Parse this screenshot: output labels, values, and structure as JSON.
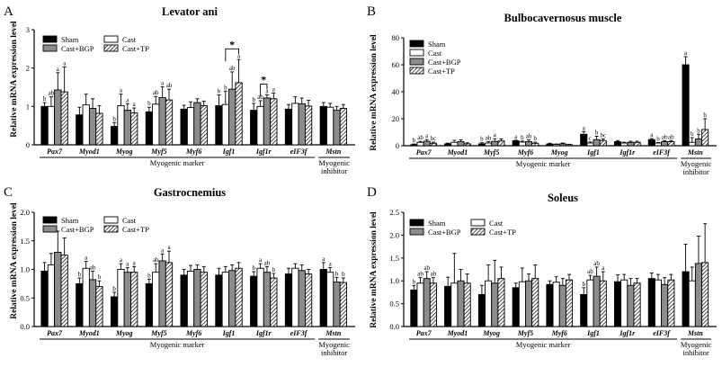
{
  "colors": {
    "sham": "#000000",
    "cast": "#ffffff",
    "cast_bgp": "#8c8c8c",
    "cast_tp_pattern": "diagonal-hatch",
    "axis": "#000000"
  },
  "chart_data": [
    {
      "type": "bar",
      "panel_letter": "A",
      "title": "Levator ani",
      "ylabel": "Relative mRNA expression level",
      "ylim": [
        0,
        3
      ],
      "yticks": [
        "0",
        "1",
        "2",
        "3"
      ],
      "legend": [
        "Sham",
        "Cast",
        "Cast+BGP",
        "Cast+TP"
      ],
      "legend_position": "top-left",
      "series_names": [
        "Sham",
        "Cast",
        "Cast+BGP",
        "Cast+TP"
      ],
      "categories": [
        "Pax7",
        "Myod1",
        "Myog",
        "Myf5",
        "Myf6",
        "Igf1",
        "Igf1r",
        "eIF3f",
        "Mstn"
      ],
      "values": [
        [
          1.0,
          1.0,
          1.43,
          1.38
        ],
        [
          0.78,
          1.04,
          0.95,
          0.82
        ],
        [
          0.48,
          1.02,
          0.9,
          0.83
        ],
        [
          0.86,
          1.06,
          1.23,
          1.17
        ],
        [
          0.93,
          0.97,
          1.1,
          1.02
        ],
        [
          1.02,
          1.05,
          1.45,
          1.62
        ],
        [
          0.9,
          1.0,
          1.22,
          1.2
        ],
        [
          0.93,
          1.08,
          1.07,
          1.01
        ],
        [
          1.0,
          0.98,
          0.9,
          0.95
        ]
      ],
      "errors": [
        [
          0.1,
          0.25,
          0.45,
          0.65
        ],
        [
          0.2,
          0.28,
          0.25,
          0.2
        ],
        [
          0.1,
          0.3,
          0.17,
          0.13
        ],
        [
          0.12,
          0.2,
          0.28,
          0.28
        ],
        [
          0.1,
          0.15,
          0.1,
          0.12
        ],
        [
          0.28,
          0.35,
          0.45,
          0.6
        ],
        [
          0.18,
          0.15,
          0.08,
          0.15
        ],
        [
          0.12,
          0.17,
          0.15,
          0.15
        ],
        [
          0.1,
          0.1,
          0.1,
          0.1
        ]
      ],
      "letters": [
        [
          "b",
          "ab",
          "a",
          "a"
        ],
        [
          "",
          "",
          "",
          ""
        ],
        [
          "b",
          "a",
          "a",
          "a"
        ],
        [
          "b",
          "ab",
          "a",
          "ab"
        ],
        [
          "",
          "",
          "",
          ""
        ],
        [
          "b",
          "b",
          "ab",
          "a"
        ],
        [
          "b",
          "ab",
          "a",
          "a"
        ],
        [
          "",
          "",
          "",
          ""
        ],
        [
          "",
          "",
          "",
          ""
        ]
      ],
      "stars": [
        {
          "category": "Igf1",
          "from": 1,
          "to": 3,
          "label": "*"
        },
        {
          "category": "Igf1r",
          "from": 1,
          "to": 2,
          "label": "*"
        }
      ],
      "groups": [
        {
          "label": "Myogenic marker",
          "from": 0,
          "to": 7
        },
        {
          "label": "Myogenic\ninhibitor",
          "from": 8,
          "to": 8
        }
      ]
    },
    {
      "type": "bar",
      "panel_letter": "B",
      "title": "Bulbocavernosus muscle",
      "ylabel": "Relative mRNA expression level",
      "ylim": [
        0,
        80
      ],
      "yticks": [
        "0",
        "20",
        "40",
        "60",
        "80"
      ],
      "legend": [
        "Sham",
        "Cast",
        "Cast+BGP",
        "Cast+TP"
      ],
      "legend_position": "top-left",
      "series_names": [
        "Sham",
        "Cast",
        "Cast+BGP",
        "Cast+TP"
      ],
      "categories": [
        "Pax7",
        "Myod1",
        "Myf5",
        "Myf6",
        "Myog",
        "Igf1",
        "Igf1r",
        "eIF3f",
        "Mstn"
      ],
      "values": [
        [
          0.8,
          2.5,
          3.3,
          1.8
        ],
        [
          1.4,
          2.5,
          3.0,
          1.4
        ],
        [
          1.4,
          2.0,
          3.2,
          3.5
        ],
        [
          3.6,
          2.7,
          3.0,
          1.8
        ],
        [
          1.3,
          0.9,
          1.4,
          0.8
        ],
        [
          8.5,
          2.0,
          4.5,
          3.8
        ],
        [
          3.0,
          2.0,
          2.5,
          2.5
        ],
        [
          4.5,
          2.0,
          3.0,
          3.0
        ],
        [
          60.0,
          2.5,
          5.0,
          12.0
        ]
      ],
      "errors": [
        [
          0.5,
          0.7,
          1.3,
          0.8
        ],
        [
          0.5,
          1.5,
          1.3,
          0.8
        ],
        [
          0.8,
          1.0,
          2.0,
          1.5
        ],
        [
          0.5,
          0.7,
          1.3,
          0.8
        ],
        [
          0.5,
          0.4,
          0.6,
          0.3
        ],
        [
          2.0,
          0.8,
          2.5,
          1.2
        ],
        [
          0.8,
          0.6,
          0.8,
          0.8
        ],
        [
          0.8,
          0.4,
          0.7,
          0.8
        ],
        [
          6.0,
          3.5,
          3.5,
          8.0
        ]
      ],
      "letters": [
        [
          "b",
          "ab",
          "a",
          "bc"
        ],
        [
          "",
          "",
          "",
          ""
        ],
        [
          "b",
          "ab",
          "a",
          ""
        ],
        [
          "a",
          "b",
          "ab",
          "b"
        ],
        [
          "",
          "",
          "",
          ""
        ],
        [
          "a",
          "c",
          "b",
          "bc"
        ],
        [
          "",
          "",
          "",
          ""
        ],
        [
          "a",
          "b",
          "ab",
          "ab"
        ],
        [
          "a",
          "b",
          "b",
          "b"
        ]
      ],
      "stars": [],
      "groups": [
        {
          "label": "Myogenic marker",
          "from": 0,
          "to": 7
        },
        {
          "label": "Myogenic\ninhibitor",
          "from": 8,
          "to": 8
        }
      ]
    },
    {
      "type": "bar",
      "panel_letter": "C",
      "title": "Gastrocnemius",
      "ylabel": "Relative mRNA expression level",
      "ylim": [
        0,
        2
      ],
      "yticks": [
        "0.0",
        "0.5",
        "1.0",
        "1.5",
        "2.0"
      ],
      "legend": [
        "Sham",
        "Cast",
        "Cast+BGP",
        "Cast+TP"
      ],
      "legend_position": "top-left",
      "series_names": [
        "Sham",
        "Cast",
        "Cast+BGP",
        "Cast+TP"
      ],
      "categories": [
        "Pax7",
        "Myod1",
        "Myog",
        "Myf5",
        "Myf6",
        "Igf1",
        "Igf1r",
        "eIF3f",
        "Mstn"
      ],
      "values": [
        [
          0.97,
          1.08,
          1.3,
          1.25
        ],
        [
          0.75,
          1.02,
          0.82,
          0.7
        ],
        [
          0.52,
          1.0,
          0.95,
          0.95
        ],
        [
          0.75,
          0.95,
          1.15,
          1.12
        ],
        [
          0.9,
          0.97,
          1.0,
          0.95
        ],
        [
          0.9,
          0.95,
          0.98,
          1.02
        ],
        [
          0.88,
          1.02,
          0.95,
          0.85
        ],
        [
          0.92,
          1.02,
          0.98,
          0.92
        ],
        [
          1.0,
          0.95,
          0.78,
          0.77
        ]
      ],
      "errors": [
        [
          0.15,
          0.2,
          0.37,
          0.3
        ],
        [
          0.1,
          0.12,
          0.15,
          0.1
        ],
        [
          0.08,
          0.1,
          0.08,
          0.1
        ],
        [
          0.08,
          0.15,
          0.12,
          0.2
        ],
        [
          0.1,
          0.1,
          0.08,
          0.1
        ],
        [
          0.12,
          0.1,
          0.1,
          0.1
        ],
        [
          0.08,
          0.08,
          0.1,
          0.08
        ],
        [
          0.1,
          0.08,
          0.1,
          0.08
        ],
        [
          0.12,
          0.08,
          0.08,
          0.08
        ]
      ],
      "letters": [
        [
          "",
          "",
          "",
          ""
        ],
        [
          "b",
          "a",
          "ab",
          "b"
        ],
        [
          "b",
          "a",
          "a",
          "a"
        ],
        [
          "b",
          "ab",
          "a",
          "a"
        ],
        [
          "",
          "",
          "",
          ""
        ],
        [
          "",
          "",
          "",
          ""
        ],
        [
          "b",
          "a",
          "ab",
          "b"
        ],
        [
          "",
          "",
          "",
          ""
        ],
        [
          "a",
          "a",
          "b",
          "b"
        ]
      ],
      "stars": [],
      "groups": [
        {
          "label": "Myogenic marker",
          "from": 0,
          "to": 7
        },
        {
          "label": "Myogenic\ninhibitor",
          "from": 8,
          "to": 8
        }
      ]
    },
    {
      "type": "bar",
      "panel_letter": "D",
      "title": "Soleus",
      "ylabel": "Relative mRNA expression level",
      "ylim": [
        0,
        2.5
      ],
      "yticks": [
        "0.0",
        "0.5",
        "1.0",
        "1.5",
        "2.0",
        "2.5"
      ],
      "legend": [
        "Sham",
        "Cast",
        "Cast+BGP",
        "Cast+TP"
      ],
      "legend_position": "top-left",
      "series_names": [
        "Sham",
        "Cast",
        "Cast+BGP",
        "Cast+TP"
      ],
      "categories": [
        "Pax7",
        "Myod1",
        "Myog",
        "Myf5",
        "Myf6",
        "Igf1",
        "Igf1r",
        "eIF3f",
        "Mstn"
      ],
      "values": [
        [
          0.8,
          0.95,
          1.05,
          0.95
        ],
        [
          0.88,
          0.95,
          1.0,
          0.95
        ],
        [
          0.7,
          1.0,
          0.95,
          1.05
        ],
        [
          0.85,
          0.98,
          1.0,
          1.05
        ],
        [
          0.92,
          0.97,
          0.9,
          1.02
        ],
        [
          0.7,
          1.02,
          1.1,
          1.0
        ],
        [
          0.98,
          1.02,
          0.9,
          0.95
        ],
        [
          1.05,
          1.02,
          0.92,
          1.02
        ],
        [
          1.2,
          1.0,
          1.38,
          1.4
        ]
      ],
      "errors": [
        [
          0.1,
          0.12,
          0.15,
          0.12
        ],
        [
          0.2,
          0.65,
          0.25,
          0.2
        ],
        [
          0.2,
          0.35,
          0.5,
          0.25
        ],
        [
          0.1,
          0.3,
          0.15,
          0.3
        ],
        [
          0.08,
          0.12,
          0.15,
          0.12
        ],
        [
          0.15,
          0.1,
          0.2,
          0.2
        ],
        [
          0.15,
          0.12,
          0.15,
          0.1
        ],
        [
          0.12,
          0.12,
          0.15,
          0.12
        ],
        [
          0.6,
          0.3,
          0.6,
          0.85
        ]
      ],
      "letters": [
        [
          "b",
          "ab",
          "ab",
          "ab"
        ],
        [
          "",
          "",
          "",
          ""
        ],
        [
          "",
          "",
          "",
          ""
        ],
        [
          "",
          "",
          "",
          ""
        ],
        [
          "",
          "",
          "",
          ""
        ],
        [
          "b",
          "ab",
          "ab",
          "a"
        ],
        [
          "",
          "",
          "",
          ""
        ],
        [
          "",
          "",
          "",
          ""
        ],
        [
          "",
          "",
          "",
          ""
        ]
      ],
      "stars": [],
      "groups": [
        {
          "label": "Myogenic marker",
          "from": 0,
          "to": 7
        },
        {
          "label": "Myogenic\ninhibitor",
          "from": 8,
          "to": 8
        }
      ]
    }
  ]
}
